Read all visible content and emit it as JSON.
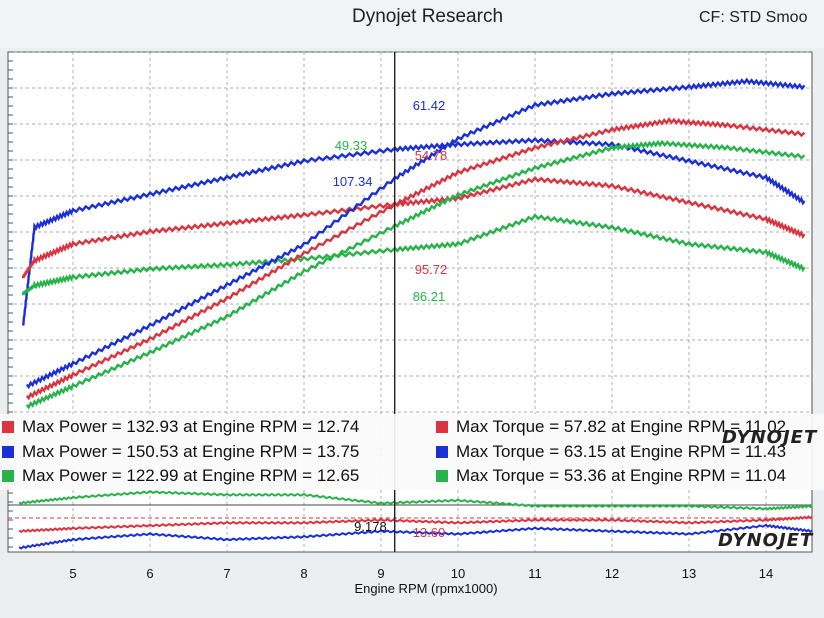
{
  "header": {
    "title": "Dynojet Research",
    "cf": "CF: STD Smoo"
  },
  "colors": {
    "red": "#d9343f",
    "blue": "#1a2fd6",
    "green": "#28b24a",
    "grid": "#8a9098"
  },
  "legend": [
    {
      "color": "red",
      "power": "Max Power = 132.93 at Engine RPM = 12.74",
      "torque": "Max Torque = 57.82 at Engine RPM = 11.02"
    },
    {
      "color": "blue",
      "power": "Max Power = 150.53 at Engine RPM = 13.75",
      "torque": "Max Torque = 63.15 at Engine RPM = 11.43"
    },
    {
      "color": "green",
      "power": "Max Power = 122.99 at Engine RPM = 12.65",
      "torque": "Max Torque = 53.36 at Engine RPM = 11.04"
    }
  ],
  "logo": {
    "text_a": "DYNO",
    "text_b": "JET"
  },
  "chart_data": {
    "type": "line",
    "xlabel": "Engine RPM (rpmx1000)",
    "xlim": [
      4.3,
      14.7
    ],
    "xticks": [
      "5",
      "6",
      "7",
      "8",
      "9",
      "10",
      "11",
      "12",
      "13",
      "14"
    ],
    "cursor": {
      "x": 9.178,
      "x_label": "9.178",
      "afr_label": "13.60"
    },
    "cursor_readouts": {
      "torque": [
        {
          "series": "blue",
          "value": "61.42"
        },
        {
          "series": "red",
          "value": "54.78"
        },
        {
          "series": "green",
          "value": "49.33"
        }
      ],
      "power": [
        {
          "series": "blue",
          "value": "107.34"
        },
        {
          "series": "red",
          "value": "95.72"
        },
        {
          "series": "green",
          "value": "86.21"
        }
      ]
    },
    "series": [
      {
        "color": "blue",
        "kind": "torque",
        "x": [
          4.35,
          4.5,
          5,
          6,
          7,
          8,
          9.18,
          10,
          11,
          12,
          13,
          14,
          14.5
        ],
        "y": [
          40,
          52,
          54,
          56,
          58,
          60,
          61.42,
          62,
          62.5,
          62,
          60,
          58,
          55
        ]
      },
      {
        "color": "red",
        "kind": "torque",
        "x": [
          4.35,
          4.5,
          5,
          6,
          7,
          8,
          9.18,
          10,
          11,
          12,
          13,
          14,
          14.5
        ],
        "y": [
          46,
          48,
          50,
          51.5,
          52.5,
          53.5,
          54.78,
          55.5,
          57.8,
          57,
          55,
          53,
          51
        ]
      },
      {
        "color": "green",
        "kind": "torque",
        "x": [
          4.35,
          4.5,
          5,
          6,
          7,
          8,
          9.18,
          10,
          11,
          12,
          13,
          14,
          14.5
        ],
        "y": [
          44,
          45,
          46,
          47,
          47.5,
          48.2,
          49.33,
          50,
          53.3,
          52,
          50,
          49,
          47
        ]
      },
      {
        "color": "blue",
        "kind": "power",
        "x": [
          4.4,
          5,
          6,
          7,
          8,
          9.18,
          10,
          11,
          12,
          13,
          13.75,
          14.5
        ],
        "y": [
          15,
          25,
          42,
          60,
          78,
          107.34,
          125,
          140,
          145,
          148,
          150.53,
          148
        ]
      },
      {
        "color": "red",
        "kind": "power",
        "x": [
          4.4,
          5,
          6,
          7,
          8,
          9.18,
          10,
          11,
          12,
          12.74,
          13.5,
          14.5
        ],
        "y": [
          10,
          20,
          36,
          54,
          74,
          95.72,
          110,
          121,
          129,
          132.93,
          131,
          127
        ]
      },
      {
        "color": "green",
        "kind": "power",
        "x": [
          4.4,
          5,
          6,
          7,
          8,
          9.18,
          10,
          11,
          12,
          12.65,
          13.5,
          14.5
        ],
        "y": [
          6,
          15,
          30,
          46,
          66,
          86.21,
          100,
          112,
          121,
          122.99,
          121,
          117
        ]
      }
    ],
    "afr_series": [
      {
        "color": "red",
        "x": [
          4.3,
          5,
          6,
          7,
          8,
          9,
          10,
          11,
          12,
          13,
          14,
          14.6
        ],
        "y": [
          13.2,
          13.3,
          13.4,
          13.5,
          13.5,
          13.6,
          13.5,
          13.6,
          13.6,
          13.5,
          13.6,
          13.7
        ]
      },
      {
        "color": "blue",
        "x": [
          4.3,
          5,
          6,
          7,
          8,
          9,
          10,
          11,
          12,
          13,
          14,
          14.6
        ],
        "y": [
          12.6,
          12.9,
          13.1,
          12.9,
          13.0,
          13.2,
          13.1,
          13.3,
          13.2,
          13.1,
          13.4,
          13.2
        ]
      },
      {
        "color": "green",
        "x": [
          4.3,
          5,
          6,
          7,
          8,
          9,
          10,
          11,
          12,
          13,
          14,
          14.6
        ],
        "y": [
          14.2,
          14.4,
          14.6,
          14.5,
          14.5,
          14.2,
          14.3,
          14.1,
          14.1,
          14.1,
          14.0,
          14.1
        ]
      }
    ],
    "grid": true
  }
}
